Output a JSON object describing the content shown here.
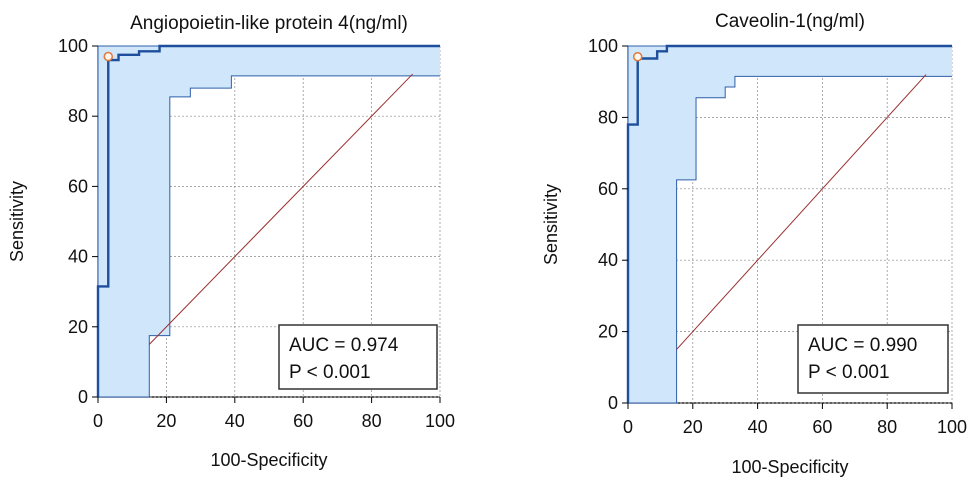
{
  "chart_data": [
    {
      "type": "line",
      "title": "Angiopoietin-like protein 4(ng/ml)",
      "xlabel": "100-Specificity",
      "ylabel": "Sensitivity",
      "xlim": [
        0,
        100
      ],
      "ylim": [
        0,
        100
      ],
      "xticks": [
        "0",
        "20",
        "40",
        "60",
        "80",
        "100"
      ],
      "yticks": [
        "0",
        "20",
        "40",
        "60",
        "80",
        "100"
      ],
      "grid": true,
      "series": [
        {
          "role": "roc-curve",
          "x": [
            0,
            0,
            3,
            3,
            6,
            6,
            12,
            12,
            18,
            18,
            100
          ],
          "y": [
            0,
            31.5,
            31.5,
            96,
            96,
            97.5,
            97.5,
            98.5,
            98.5,
            100,
            100
          ]
        },
        {
          "role": "ci-upper",
          "x": [
            0,
            0,
            100
          ],
          "y": [
            0,
            100,
            100
          ]
        },
        {
          "role": "ci-lower",
          "x": [
            0,
            15,
            15,
            21,
            21,
            27,
            27,
            39,
            39,
            100
          ],
          "y": [
            0,
            0,
            17.5,
            17.5,
            85.5,
            85.5,
            88,
            88,
            91.5,
            91.5
          ]
        },
        {
          "role": "reference-diagonal",
          "x": [
            15,
            92
          ],
          "y": [
            15,
            92
          ]
        }
      ],
      "optimal_point": {
        "x": 3,
        "y": 97
      },
      "annotation": {
        "auc": "AUC = 0.974",
        "p": "P < 0.001"
      },
      "colors": {
        "curve": "#1f4e9c",
        "fill": "#cfe6fb",
        "ci": "#2f5fa8",
        "diagonal": "#9b2f2f",
        "point": "#e0793a",
        "grid": "#888888"
      }
    },
    {
      "type": "line",
      "title": "Caveolin-1(ng/ml)",
      "xlabel": "100-Specificity",
      "ylabel": "Sensitivity",
      "xlim": [
        0,
        100
      ],
      "ylim": [
        0,
        100
      ],
      "xticks": [
        "0",
        "20",
        "40",
        "60",
        "80",
        "100"
      ],
      "yticks": [
        "0",
        "20",
        "40",
        "60",
        "80",
        "100"
      ],
      "grid": true,
      "series": [
        {
          "role": "roc-curve",
          "x": [
            0,
            0,
            3,
            3,
            9,
            9,
            12,
            12,
            100
          ],
          "y": [
            0,
            78,
            78,
            96.5,
            96.5,
            98.5,
            98.5,
            100,
            100
          ]
        },
        {
          "role": "ci-upper",
          "x": [
            0,
            0,
            100
          ],
          "y": [
            0,
            100,
            100
          ]
        },
        {
          "role": "ci-lower",
          "x": [
            0,
            15,
            15,
            21,
            21,
            30,
            30,
            33,
            33,
            100
          ],
          "y": [
            0,
            0,
            62.5,
            62.5,
            85.5,
            85.5,
            88.5,
            88.5,
            91.5,
            91.5
          ]
        },
        {
          "role": "reference-diagonal",
          "x": [
            15,
            92
          ],
          "y": [
            15,
            92
          ]
        }
      ],
      "optimal_point": {
        "x": 3,
        "y": 97
      },
      "annotation": {
        "auc": "AUC = 0.990",
        "p": "P < 0.001"
      },
      "colors": {
        "curve": "#1f4e9c",
        "fill": "#cfe6fb",
        "ci": "#2f5fa8",
        "diagonal": "#9b2f2f",
        "point": "#e0793a",
        "grid": "#888888"
      }
    }
  ]
}
